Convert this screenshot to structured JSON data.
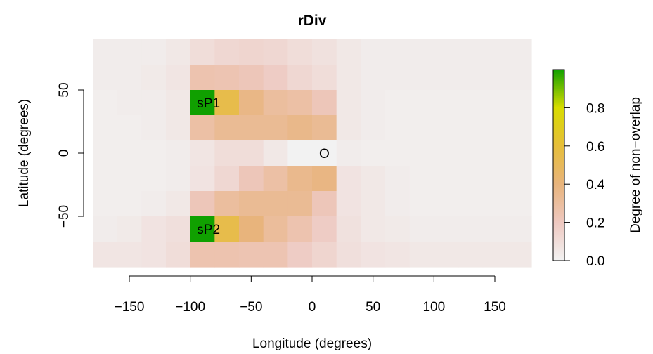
{
  "chart_data": {
    "type": "heatmap",
    "title": "rDiv",
    "xlabel": "Longitude (degrees)",
    "ylabel": "Latitude (degrees)",
    "xlim": [
      -180,
      180
    ],
    "ylim": [
      -90,
      90
    ],
    "cell_size_deg": 20,
    "x_ticks": [
      -150,
      -100,
      -50,
      0,
      50,
      100,
      150
    ],
    "x_tick_labels": [
      "−150",
      "−100",
      "−50",
      "0",
      "50",
      "100",
      "150"
    ],
    "y_ticks": [
      -50,
      0,
      50
    ],
    "y_tick_labels": [
      "−50",
      "0",
      "50"
    ],
    "row_centers_lat": [
      80,
      60,
      40,
      20,
      0,
      -20,
      -40,
      -60,
      -80
    ],
    "col_centers_lon": [
      -170,
      -150,
      -130,
      -110,
      -90,
      -70,
      -50,
      -30,
      -10,
      10,
      30,
      50,
      70,
      90,
      110,
      130,
      150,
      170
    ],
    "values": [
      [
        0.03,
        0.03,
        0.03,
        0.05,
        0.1,
        0.13,
        0.14,
        0.13,
        0.1,
        0.08,
        0.05,
        0.03,
        0.03,
        0.03,
        0.03,
        0.03,
        0.03,
        0.03
      ],
      [
        0.03,
        0.03,
        0.04,
        0.06,
        0.25,
        0.24,
        0.22,
        0.18,
        0.13,
        0.1,
        0.05,
        0.03,
        0.03,
        0.03,
        0.03,
        0.03,
        0.03,
        0.03
      ],
      [
        0.02,
        0.03,
        0.03,
        0.05,
        1.0,
        0.55,
        0.37,
        0.3,
        0.28,
        0.22,
        0.05,
        0.03,
        0.02,
        0.02,
        0.02,
        0.02,
        0.02,
        0.02
      ],
      [
        0.02,
        0.02,
        0.03,
        0.05,
        0.28,
        0.33,
        0.33,
        0.33,
        0.36,
        0.33,
        0.05,
        0.03,
        0.02,
        0.02,
        0.02,
        0.02,
        0.02,
        0.02
      ],
      [
        0.02,
        0.02,
        0.02,
        0.03,
        0.06,
        0.1,
        0.1,
        0.05,
        0.0,
        0.0,
        0.03,
        0.02,
        0.02,
        0.02,
        0.02,
        0.02,
        0.02,
        0.02
      ],
      [
        0.02,
        0.02,
        0.02,
        0.03,
        0.07,
        0.13,
        0.22,
        0.28,
        0.35,
        0.38,
        0.07,
        0.05,
        0.03,
        0.02,
        0.02,
        0.02,
        0.02,
        0.02
      ],
      [
        0.02,
        0.02,
        0.03,
        0.05,
        0.22,
        0.3,
        0.33,
        0.33,
        0.33,
        0.22,
        0.07,
        0.05,
        0.03,
        0.02,
        0.02,
        0.02,
        0.02,
        0.02
      ],
      [
        0.03,
        0.04,
        0.07,
        0.09,
        1.0,
        0.55,
        0.4,
        0.31,
        0.25,
        0.18,
        0.08,
        0.05,
        0.04,
        0.03,
        0.03,
        0.03,
        0.03,
        0.03
      ],
      [
        0.06,
        0.06,
        0.07,
        0.1,
        0.25,
        0.25,
        0.24,
        0.24,
        0.18,
        0.14,
        0.09,
        0.07,
        0.06,
        0.05,
        0.05,
        0.05,
        0.05,
        0.05
      ]
    ],
    "annotations": [
      {
        "text": "sP1",
        "lon": -85,
        "lat": 40
      },
      {
        "text": "sP2",
        "lon": -85,
        "lat": -60
      },
      {
        "text": "O",
        "lon": 10,
        "lat": 0
      }
    ],
    "colorbar": {
      "label": "Degree of non−overlap",
      "ticks": [
        0.0,
        0.2,
        0.4,
        0.6,
        0.8
      ],
      "tick_labels": [
        "0.0",
        "0.2",
        "0.4",
        "0.6",
        "0.8"
      ],
      "range": [
        0,
        1
      ],
      "colors": [
        "#f2f2f2",
        "#eec8c0",
        "#e8b47c",
        "#e6be3a",
        "#d8dc00",
        "#10a000"
      ]
    },
    "grid": false,
    "legend": "right"
  }
}
